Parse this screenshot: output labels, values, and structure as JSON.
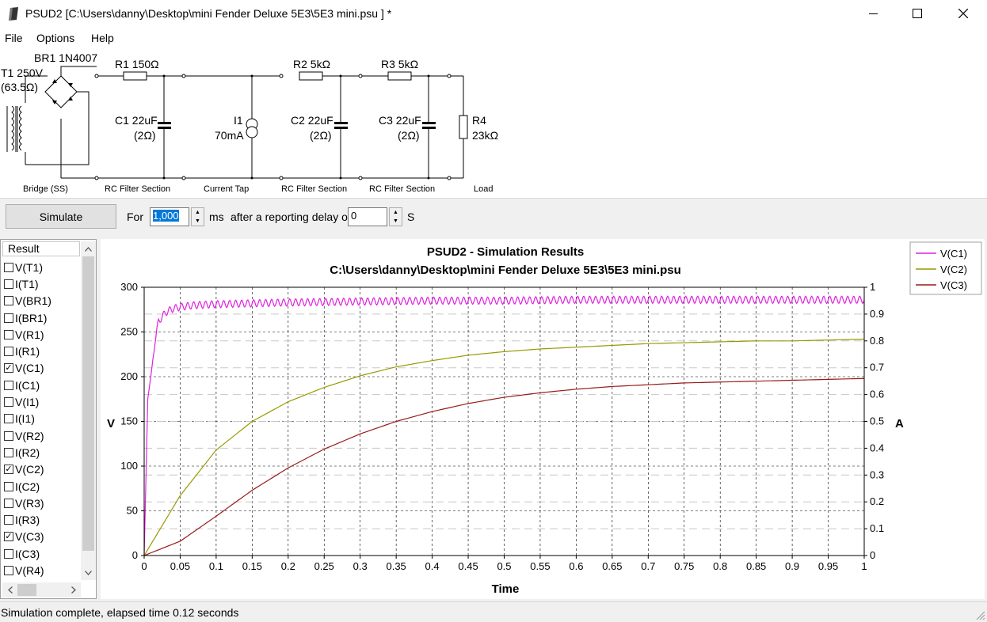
{
  "window": {
    "title": "PSUD2  [C:\\Users\\danny\\Desktop\\mini Fender Deluxe 5E3\\5E3 mini.psu ] *"
  },
  "menu": [
    "File",
    "Options",
    "Help"
  ],
  "circuit": {
    "bridge": "BR1 1N4007",
    "transformer": "T1 250V",
    "transformer_r": "(63.5Ω)",
    "r1": "R1 150Ω",
    "c1": "C1 22uF",
    "c1_esr": "(2Ω)",
    "i1": "I1",
    "i1_val": "70mA",
    "r2": "R2 5kΩ",
    "c2": "C2 22uF",
    "c2_esr": "(2Ω)",
    "r3": "R3 5kΩ",
    "c3": "C3 22uF",
    "c3_esr": "(2Ω)",
    "r4": "R4",
    "r4_val": "23kΩ",
    "sections": [
      "Bridge (SS)",
      "RC Filter Section",
      "Current Tap",
      "RC Filter Section",
      "RC Filter Section",
      "Load"
    ]
  },
  "toolbar": {
    "simulate": "Simulate",
    "for_label": "For",
    "duration": "1,000",
    "ms_label": "ms",
    "after_label": "after a reporting delay of",
    "delay": "0",
    "s_label": "S"
  },
  "results": {
    "header": "Result",
    "items": [
      {
        "label": "V(T1)",
        "checked": false
      },
      {
        "label": "I(T1)",
        "checked": false
      },
      {
        "label": "V(BR1)",
        "checked": false
      },
      {
        "label": "I(BR1)",
        "checked": false
      },
      {
        "label": "V(R1)",
        "checked": false
      },
      {
        "label": "I(R1)",
        "checked": false
      },
      {
        "label": "V(C1)",
        "checked": true
      },
      {
        "label": "I(C1)",
        "checked": false
      },
      {
        "label": "V(I1)",
        "checked": false
      },
      {
        "label": "I(I1)",
        "checked": false
      },
      {
        "label": "V(R2)",
        "checked": false
      },
      {
        "label": "I(R2)",
        "checked": false
      },
      {
        "label": "V(C2)",
        "checked": true
      },
      {
        "label": "I(C2)",
        "checked": false
      },
      {
        "label": "V(R3)",
        "checked": false
      },
      {
        "label": "I(R3)",
        "checked": false
      },
      {
        "label": "V(C3)",
        "checked": true
      },
      {
        "label": "I(C3)",
        "checked": false
      },
      {
        "label": "V(R4)",
        "checked": false
      }
    ]
  },
  "chart_data": {
    "type": "line",
    "title": "PSUD2 - Simulation Results",
    "subtitle": "C:\\Users\\danny\\Desktop\\mini Fender Deluxe 5E3\\5E3 mini.psu",
    "xlabel": "Time",
    "ylabel": "V",
    "y2label": "A",
    "xlim": [
      0,
      1
    ],
    "ylim": [
      0,
      300
    ],
    "y2lim": [
      0,
      1
    ],
    "xticks": [
      "0",
      "0.05",
      "0.1",
      "0.15",
      "0.2",
      "0.25",
      "0.3",
      "0.35",
      "0.4",
      "0.45",
      "0.5",
      "0.55",
      "0.6",
      "0.65",
      "0.7",
      "0.75",
      "0.8",
      "0.85",
      "0.9",
      "0.95",
      "1"
    ],
    "yticks": [
      "0",
      "50",
      "100",
      "150",
      "200",
      "250",
      "300"
    ],
    "y2ticks": [
      "0",
      "0.1",
      "0.2",
      "0.3",
      "0.4",
      "0.5",
      "0.6",
      "0.7",
      "0.8",
      "0.9",
      "1"
    ],
    "grid": true,
    "legend_position": "top-right",
    "series": [
      {
        "name": "V(C1)",
        "color": "#e020e0",
        "x": [
          0,
          0.005,
          0.01,
          0.015,
          0.02,
          0.03,
          0.04,
          0.05,
          0.07,
          0.1,
          0.15,
          0.2,
          0.3,
          0.4,
          0.5,
          0.6,
          0.7,
          0.8,
          0.9,
          1.0
        ],
        "y": [
          0,
          175,
          205,
          240,
          262,
          272,
          276,
          278,
          280,
          281,
          282,
          283,
          284,
          285,
          285,
          286,
          286,
          286,
          286,
          286
        ],
        "ripple": 8
      },
      {
        "name": "V(C2)",
        "color": "#999900",
        "x": [
          0,
          0.05,
          0.1,
          0.15,
          0.2,
          0.25,
          0.3,
          0.35,
          0.4,
          0.45,
          0.5,
          0.55,
          0.6,
          0.65,
          0.7,
          0.75,
          0.8,
          0.85,
          0.9,
          0.95,
          1.0
        ],
        "y": [
          0,
          67,
          118,
          150,
          172,
          188,
          201,
          211,
          218,
          224,
          228,
          231,
          233,
          235,
          237,
          238,
          239,
          240,
          240,
          241,
          242
        ]
      },
      {
        "name": "V(C3)",
        "color": "#9a1a1a",
        "x": [
          0,
          0.05,
          0.1,
          0.15,
          0.2,
          0.25,
          0.3,
          0.35,
          0.4,
          0.45,
          0.5,
          0.55,
          0.6,
          0.65,
          0.7,
          0.75,
          0.8,
          0.85,
          0.9,
          0.95,
          1.0
        ],
        "y": [
          0,
          16,
          44,
          73,
          98,
          119,
          136,
          150,
          161,
          170,
          177,
          182,
          186,
          189,
          191,
          193,
          194,
          195,
          196,
          197,
          198
        ]
      }
    ]
  },
  "status": "Simulation complete, elapsed time 0.12 seconds"
}
